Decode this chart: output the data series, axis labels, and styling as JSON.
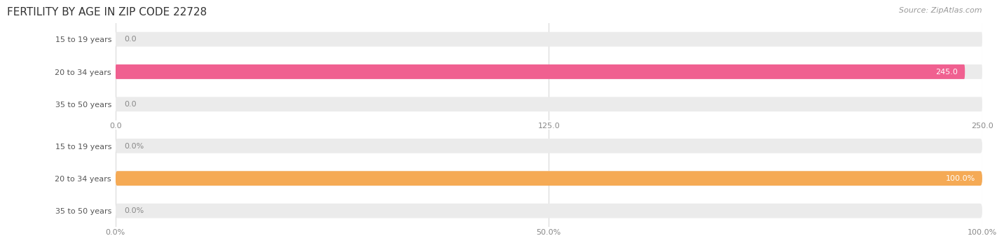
{
  "title": "FERTILITY BY AGE IN ZIP CODE 22728",
  "source": "Source: ZipAtlas.com",
  "top_chart": {
    "categories": [
      "15 to 19 years",
      "20 to 34 years",
      "35 to 50 years"
    ],
    "values": [
      0.0,
      245.0,
      0.0
    ],
    "xlim": [
      0,
      250
    ],
    "xticks": [
      0.0,
      125.0,
      250.0
    ],
    "xtick_labels": [
      "0.0",
      "125.0",
      "250.0"
    ],
    "bar_color": "#f06090",
    "bar_bg_color": "#ebebeb",
    "value_threshold": 200
  },
  "bottom_chart": {
    "categories": [
      "15 to 19 years",
      "20 to 34 years",
      "35 to 50 years"
    ],
    "values": [
      0.0,
      100.0,
      0.0
    ],
    "xlim": [
      0,
      100
    ],
    "xticks": [
      0.0,
      50.0,
      100.0
    ],
    "xtick_labels": [
      "0.0%",
      "50.0%",
      "100.0%"
    ],
    "bar_color": "#f5aa55",
    "bar_bg_color": "#ebebeb",
    "value_threshold": 80,
    "is_percent": true
  },
  "bg_color": "#ffffff",
  "cat_label_color": "#555555",
  "grid_color": "#d8d8d8",
  "title_fontsize": 11,
  "source_fontsize": 8,
  "tick_fontsize": 8,
  "cat_fontsize": 8,
  "val_fontsize": 8
}
